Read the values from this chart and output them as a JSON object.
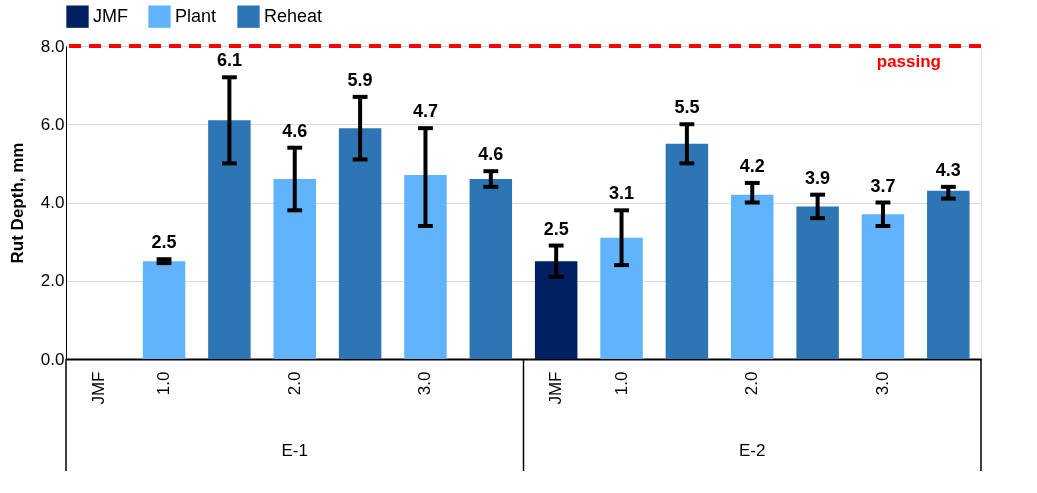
{
  "chart_data": {
    "type": "bar",
    "ylabel": "Rut Depth, mm",
    "categories": [
      "JMF",
      "1.0",
      null,
      "2.0",
      null,
      "3.0",
      null,
      "JMF",
      "1.0",
      null,
      "2.0",
      null,
      "3.0",
      null
    ],
    "series": [
      {
        "name": "JMF",
        "color": "#002060",
        "values": [
          null,
          null,
          null,
          null,
          null,
          null,
          null,
          2.5,
          null,
          null,
          null,
          null,
          null,
          null
        ],
        "errors": [
          null,
          null,
          null,
          null,
          null,
          null,
          null,
          [
            2.1,
            2.9
          ],
          null,
          null,
          null,
          null,
          null,
          null
        ]
      },
      {
        "name": "Plant",
        "color": "#61b4fc",
        "values": [
          null,
          2.5,
          null,
          4.6,
          null,
          4.7,
          null,
          null,
          3.1,
          null,
          4.2,
          null,
          3.7,
          null
        ],
        "errors": [
          null,
          [
            2.45,
            2.55
          ],
          null,
          [
            3.8,
            5.4
          ],
          null,
          [
            3.4,
            5.9
          ],
          null,
          null,
          [
            2.4,
            3.8
          ],
          null,
          [
            4.0,
            4.5
          ],
          null,
          [
            3.4,
            4.0
          ],
          null
        ]
      },
      {
        "name": "Reheat",
        "color": "#2e75b6",
        "values": [
          null,
          null,
          6.1,
          null,
          5.9,
          null,
          4.6,
          null,
          null,
          5.5,
          null,
          3.9,
          null,
          4.3
        ],
        "errors": [
          null,
          null,
          [
            5.0,
            7.2
          ],
          null,
          [
            5.1,
            6.7
          ],
          null,
          [
            4.4,
            4.8
          ],
          null,
          null,
          [
            5.0,
            6.0
          ],
          null,
          [
            3.6,
            4.2
          ],
          null,
          [
            4.1,
            4.4
          ]
        ]
      }
    ],
    "ylim": [
      0,
      8
    ],
    "yticks": [
      {
        "value": 0,
        "label": "0.0"
      },
      {
        "value": 2,
        "label": "2.0"
      },
      {
        "value": 4,
        "label": "4.0"
      },
      {
        "value": 6,
        "label": "6.0"
      },
      {
        "value": 8,
        "label": "8.0"
      }
    ],
    "grid": "y",
    "legend": "top",
    "data_labels": true,
    "ref_lines": [
      {
        "axis": "y",
        "value": 8,
        "label": "passing",
        "color": "#ff0000",
        "line_style": "dashed"
      }
    ],
    "annotations": [
      "E-1",
      "E-2"
    ]
  }
}
